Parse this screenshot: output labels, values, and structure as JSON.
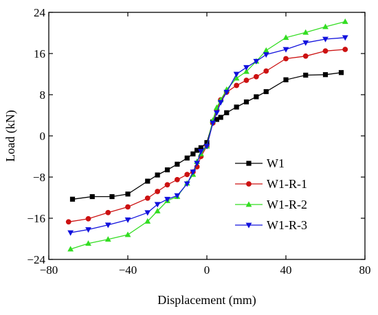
{
  "chart_data": {
    "type": "line",
    "title": "",
    "xlabel": "Displacement (mm)",
    "ylabel": "Load (kN)",
    "xlim": [
      -80,
      80
    ],
    "ylim": [
      -24,
      24
    ],
    "xticks": [
      -80,
      -40,
      0,
      40,
      80
    ],
    "yticks": [
      -24,
      -16,
      -8,
      0,
      8,
      16,
      24
    ],
    "xtick_labels": [
      "−80",
      "−40",
      "0",
      "40",
      "80"
    ],
    "ytick_labels": [
      "−24",
      "−16",
      "−8",
      "0",
      "8",
      "16",
      "24"
    ],
    "grid": false,
    "legend_position": "lower-right",
    "series": [
      {
        "name": "W1",
        "color": "#000000",
        "marker": "square",
        "x": [
          -68,
          -58,
          -48,
          -40,
          -30,
          -25,
          -20,
          -15,
          -10,
          -7,
          -5,
          -3,
          0,
          3,
          5,
          7,
          10,
          15,
          20,
          25,
          30,
          40,
          50,
          60,
          68
        ],
        "y": [
          -12.3,
          -11.8,
          -11.8,
          -11.3,
          -8.8,
          -7.6,
          -6.6,
          -5.5,
          -4.3,
          -3.5,
          -2.8,
          -2.3,
          -1.3,
          2.7,
          3.2,
          3.6,
          4.5,
          5.6,
          6.6,
          7.6,
          8.6,
          10.9,
          11.8,
          11.9,
          12.3
        ]
      },
      {
        "name": "W1-R-1",
        "color": "#cc1111",
        "marker": "circle",
        "x": [
          -70,
          -60,
          -50,
          -40,
          -30,
          -25,
          -20,
          -15,
          -10,
          -7,
          -5,
          -3,
          0,
          3,
          5,
          7,
          10,
          15,
          20,
          25,
          30,
          40,
          50,
          60,
          70
        ],
        "y": [
          -16.7,
          -16.1,
          -14.9,
          -13.8,
          -12.1,
          -10.8,
          -9.5,
          -8.5,
          -7.5,
          -7.0,
          -6.0,
          -4.0,
          -2.0,
          2.5,
          5.0,
          7.0,
          8.5,
          9.8,
          10.8,
          11.5,
          12.6,
          15.0,
          15.5,
          16.5,
          16.8
        ]
      },
      {
        "name": "W1-R-2",
        "color": "#33dd22",
        "marker": "triangle-up",
        "x": [
          -69,
          -60,
          -50,
          -40,
          -30,
          -25,
          -20,
          -15,
          -10,
          -7,
          -5,
          -3,
          0,
          3,
          5,
          7,
          10,
          15,
          20,
          25,
          30,
          40,
          50,
          60,
          70
        ],
        "y": [
          -22.0,
          -20.9,
          -20.1,
          -19.2,
          -16.6,
          -14.6,
          -12.6,
          -11.8,
          -9.2,
          -7.5,
          -5.0,
          -3.5,
          -2.0,
          3.0,
          5.5,
          7.0,
          9.0,
          11.2,
          12.5,
          14.5,
          16.6,
          19.1,
          20.1,
          21.2,
          22.2
        ]
      },
      {
        "name": "W1-R-3",
        "color": "#1111dd",
        "marker": "triangle-down",
        "x": [
          -69,
          -60,
          -50,
          -40,
          -30,
          -25,
          -20,
          -15,
          -10,
          -7,
          -5,
          -3,
          0,
          3,
          5,
          7,
          10,
          15,
          20,
          25,
          30,
          40,
          50,
          60,
          70
        ],
        "y": [
          -18.8,
          -18.2,
          -17.3,
          -16.3,
          -14.9,
          -13.3,
          -12.3,
          -11.6,
          -9.3,
          -7.0,
          -5.3,
          -3.0,
          -2.0,
          2.5,
          4.5,
          6.5,
          8.5,
          12.0,
          13.3,
          14.5,
          15.8,
          16.8,
          18.1,
          18.8,
          19.1
        ]
      }
    ]
  }
}
